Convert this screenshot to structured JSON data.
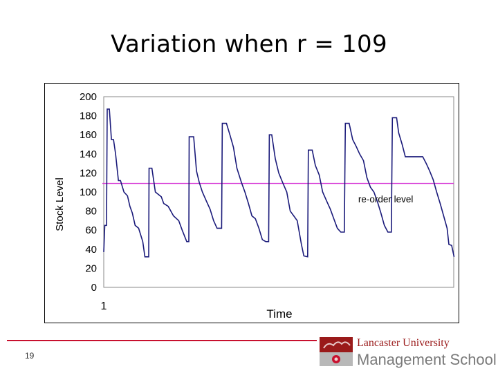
{
  "slide": {
    "title": "Variation when r = 109",
    "page_number": "19"
  },
  "logo": {
    "line1": "Lancaster University",
    "line2": "Management School"
  },
  "colors": {
    "stock_line": "#1a1a7a",
    "reorder_line": "#d63ad6",
    "footer_rule": "#c8102e",
    "logo_red": "#9a1a1a"
  },
  "chart_data": {
    "type": "line",
    "title": "",
    "xlabel": "Time",
    "ylabel": "Stock Level",
    "ylim": [
      0,
      200
    ],
    "yticks": [
      0,
      20,
      40,
      60,
      80,
      100,
      120,
      140,
      160,
      180,
      200
    ],
    "x_tick_labels": [
      {
        "x": 0,
        "label": "1"
      }
    ],
    "xlim": [
      0,
      100
    ],
    "grid": false,
    "annotations": [
      {
        "text": "re-order level",
        "x": 73,
        "y": 92
      }
    ],
    "series": [
      {
        "values": [
          [
            0,
            37
          ],
          [
            0.3,
            65
          ],
          [
            0.8,
            65
          ],
          [
            1,
            187
          ],
          [
            1.6,
            187
          ],
          [
            2.2,
            155
          ],
          [
            2.8,
            155
          ],
          [
            3.4,
            140
          ],
          [
            4.2,
            112
          ],
          [
            4.8,
            112
          ],
          [
            5.8,
            100
          ],
          [
            6.8,
            96
          ],
          [
            7.5,
            85
          ],
          [
            8.2,
            78
          ],
          [
            9,
            65
          ],
          [
            10,
            62
          ],
          [
            11.2,
            48
          ],
          [
            11.8,
            32
          ],
          [
            12.9,
            32
          ],
          [
            13,
            125
          ],
          [
            13.8,
            125
          ],
          [
            14.8,
            100
          ],
          [
            16.5,
            95
          ],
          [
            17.2,
            88
          ],
          [
            18.5,
            85
          ],
          [
            20,
            75
          ],
          [
            21.5,
            70
          ],
          [
            22.5,
            60
          ],
          [
            23.8,
            48
          ],
          [
            24.4,
            48
          ],
          [
            24.5,
            158
          ],
          [
            25.8,
            158
          ],
          [
            26.6,
            122
          ],
          [
            27.4,
            110
          ],
          [
            28.3,
            100
          ],
          [
            29.5,
            90
          ],
          [
            30.5,
            82
          ],
          [
            31.5,
            70
          ],
          [
            32.5,
            62
          ],
          [
            33.8,
            62
          ],
          [
            34,
            172
          ],
          [
            35.2,
            172
          ],
          [
            36.2,
            160
          ],
          [
            37.2,
            147
          ],
          [
            38.2,
            125
          ],
          [
            39.5,
            110
          ],
          [
            40.5,
            100
          ],
          [
            41.5,
            88
          ],
          [
            42.5,
            75
          ],
          [
            43.5,
            72
          ],
          [
            44.5,
            62
          ],
          [
            45.5,
            50
          ],
          [
            46.5,
            48
          ],
          [
            47.3,
            48
          ],
          [
            47.5,
            160
          ],
          [
            48.2,
            160
          ],
          [
            49.2,
            135
          ],
          [
            50.2,
            120
          ],
          [
            51.3,
            110
          ],
          [
            52.5,
            100
          ],
          [
            53.5,
            80
          ],
          [
            54.5,
            75
          ],
          [
            55.5,
            70
          ],
          [
            56.7,
            45
          ],
          [
            57.4,
            33
          ],
          [
            58.5,
            32
          ],
          [
            58.7,
            144
          ],
          [
            59.8,
            144
          ],
          [
            60.7,
            128
          ],
          [
            61.8,
            118
          ],
          [
            62.8,
            100
          ],
          [
            64,
            90
          ],
          [
            65,
            82
          ],
          [
            66,
            72
          ],
          [
            67,
            62
          ],
          [
            68,
            58
          ],
          [
            69,
            58
          ],
          [
            69.3,
            172
          ],
          [
            70.4,
            172
          ],
          [
            71.4,
            155
          ],
          [
            72.4,
            148
          ],
          [
            73.4,
            140
          ],
          [
            74.5,
            133
          ],
          [
            75.5,
            115
          ],
          [
            76.5,
            105
          ],
          [
            77.5,
            100
          ],
          [
            78.5,
            90
          ],
          [
            79.5,
            78
          ],
          [
            80.5,
            65
          ],
          [
            81.5,
            58
          ],
          [
            82.5,
            58
          ],
          [
            82.8,
            178
          ],
          [
            84,
            178
          ],
          [
            84.6,
            162
          ],
          [
            85.6,
            150
          ],
          [
            86.5,
            137
          ],
          [
            88,
            137
          ],
          [
            90,
            137
          ],
          [
            91.5,
            137
          ],
          [
            92.5,
            130
          ],
          [
            93.5,
            122
          ],
          [
            94.5,
            113
          ],
          [
            95.5,
            100
          ],
          [
            96.5,
            88
          ],
          [
            97.5,
            75
          ],
          [
            98.5,
            62
          ],
          [
            99,
            45
          ],
          [
            99.8,
            44
          ],
          [
            100.5,
            32
          ]
        ]
      },
      {
        "name": "re-order level",
        "values": [
          [
            0,
            109
          ],
          [
            100,
            109
          ]
        ]
      }
    ]
  }
}
